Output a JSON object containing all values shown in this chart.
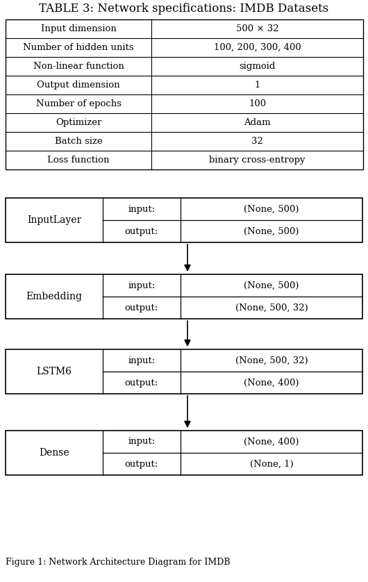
{
  "title": "TABLE 3: Network specifications: IMDB Datasets",
  "table_rows": [
    [
      "Input dimension",
      "500 × 32"
    ],
    [
      "Number of hidden units",
      "100, 200, 300, 400"
    ],
    [
      "Non-linear function",
      "sigmoid"
    ],
    [
      "Output dimension",
      "1"
    ],
    [
      "Number of epochs",
      "100"
    ],
    [
      "Optimizer",
      "Adam"
    ],
    [
      "Batch size",
      "32"
    ],
    [
      "Loss function",
      "binary cross-entropy"
    ]
  ],
  "fig_caption": "Figure 1: Network Architecture Diagram for IMDB",
  "layers": [
    {
      "name": "InputLayer",
      "input": "(None, 500)",
      "output": "(None, 500)"
    },
    {
      "name": "Embedding",
      "input": "(None, 500)",
      "output": "(None, 500, 32)"
    },
    {
      "name": "LSTM6",
      "input": "(None, 500, 32)",
      "output": "(None, 400)"
    },
    {
      "name": "Dense",
      "input": "(None, 400)",
      "output": "(None, 1)"
    }
  ],
  "bg_color": "#ffffff",
  "box_edge_color": "#000000",
  "text_color": "#000000",
  "font_size": 9.5,
  "title_font_size": 12
}
